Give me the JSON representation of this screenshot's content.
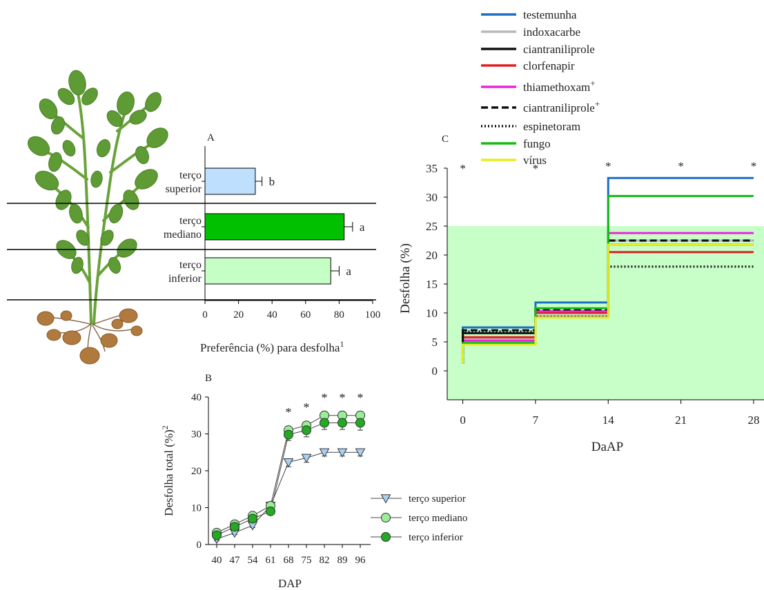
{
  "chart_data": [
    {
      "panel": "A",
      "type": "bar",
      "orientation": "horizontal",
      "categories": [
        "terço superior",
        "terço mediano",
        "terço inferior"
      ],
      "category_lines": [
        [
          "terço",
          "superior"
        ],
        [
          "terço",
          "mediano"
        ],
        [
          "terço",
          "inferior"
        ]
      ],
      "values": [
        30,
        83,
        75
      ],
      "errors": [
        4,
        5,
        5
      ],
      "letters": [
        "b",
        "a",
        "a"
      ],
      "colors": [
        "#bfdfff",
        "#00c000",
        "#c6ffc6"
      ],
      "xlabel": "Preferência (%) para desfolha",
      "xlabel_sup": "1",
      "xticks": [
        0,
        20,
        40,
        60,
        80,
        100
      ],
      "xlim": [
        0,
        100
      ]
    },
    {
      "panel": "B",
      "type": "line",
      "x": [
        "40",
        "47",
        "54",
        "61",
        "68",
        "75",
        "82",
        "89",
        "96"
      ],
      "series": [
        {
          "name": "terço superior",
          "values": [
            1.5,
            3.2,
            5.2,
            10.5,
            22.3,
            23.5,
            25,
            25,
            25
          ],
          "errors": [
            0.5,
            0.5,
            0.6,
            0.8,
            1.2,
            1.2,
            1,
            1,
            1
          ],
          "marker": "triangle-down",
          "color": "#a8d0f0"
        },
        {
          "name": "terço mediano",
          "values": [
            3.2,
            5.5,
            7.8,
            10.5,
            31,
            32.3,
            35,
            35,
            35
          ],
          "errors": [
            0.5,
            0.6,
            0.7,
            0.8,
            1.2,
            1.2,
            1.2,
            1.2,
            1.2
          ],
          "marker": "circle",
          "color": "#99ee99"
        },
        {
          "name": "terço inferior",
          "values": [
            2.5,
            4.8,
            7,
            9,
            29.8,
            31,
            33,
            33,
            33
          ],
          "errors": [
            0.5,
            0.6,
            0.7,
            0.8,
            1.6,
            1.8,
            1.8,
            1.8,
            2
          ],
          "marker": "circle",
          "color": "#22aa22"
        }
      ],
      "significance": [
        "",
        "",
        "",
        "",
        "*",
        "*",
        "*",
        "*",
        "*"
      ],
      "xlabel": "DAP",
      "ylabel": "Desfolha total (%)",
      "ylabel_sup": "2",
      "yticks": [
        0,
        10,
        20,
        30,
        40
      ],
      "ylim": [
        0,
        40
      ]
    },
    {
      "panel": "C",
      "type": "line",
      "step": true,
      "x": [
        0,
        7,
        14,
        21,
        28
      ],
      "series": [
        {
          "name": "testemunha",
          "values": [
            7.5,
            11.8,
            33.3,
            33.3,
            33.3
          ],
          "color": "#1a6fc4",
          "dash": "solid"
        },
        {
          "name": "indoxacarbe",
          "values": [
            5.5,
            9.5,
            22.5,
            22.5,
            22.5
          ],
          "color": "#b8b8b8",
          "dash": "solid"
        },
        {
          "name": "ciantraniliprole",
          "values": [
            6.5,
            10.0,
            21.8,
            21.8,
            21.8
          ],
          "color": "#111111",
          "dash": "solid"
        },
        {
          "name": "clorfenapir",
          "values": [
            5.8,
            10.0,
            20.5,
            20.5,
            20.5
          ],
          "color": "#e21f1f",
          "dash": "solid"
        },
        {
          "name": "thiamethoxam",
          "name_sup": "+",
          "values": [
            5.2,
            10.3,
            23.8,
            23.8,
            23.8
          ],
          "color": "#ee22dd",
          "dash": "solid"
        },
        {
          "name": "ciantraniliprole",
          "name_sup": "+",
          "values": [
            7.0,
            10.6,
            22.5,
            22.5,
            22.5
          ],
          "color": "#111111",
          "dash": "dashed"
        },
        {
          "name": "espinetoram",
          "values": [
            6.8,
            9.3,
            18.0,
            18.0,
            18.0
          ],
          "color": "#111111",
          "dash": "dotted"
        },
        {
          "name": "fungo",
          "values": [
            4.8,
            10.8,
            30.2,
            30.2,
            30.2
          ],
          "color": "#11bb11",
          "dash": "solid"
        },
        {
          "name": "vírus",
          "values": [
            4.5,
            9.2,
            21.8,
            21.8,
            21.8
          ],
          "color": "#e6ee22",
          "dash": "solid"
        }
      ],
      "start_value": 1.2,
      "significance": [
        "*",
        "*",
        "*",
        "*",
        "*"
      ],
      "shaded_band": [
        -5,
        25
      ],
      "shaded_color": "#c8ffc8",
      "xlabel": "DaAP",
      "ylabel": "Desfolha (%)",
      "xticks": [
        0,
        7,
        14,
        21,
        28
      ],
      "yticks": [
        0,
        5,
        10,
        15,
        20,
        25,
        30,
        35
      ],
      "xlim": [
        -1.5,
        29
      ],
      "ylim": [
        -5,
        35
      ]
    }
  ],
  "panel_labels": {
    "a": "A",
    "b": "B",
    "c": "C"
  }
}
